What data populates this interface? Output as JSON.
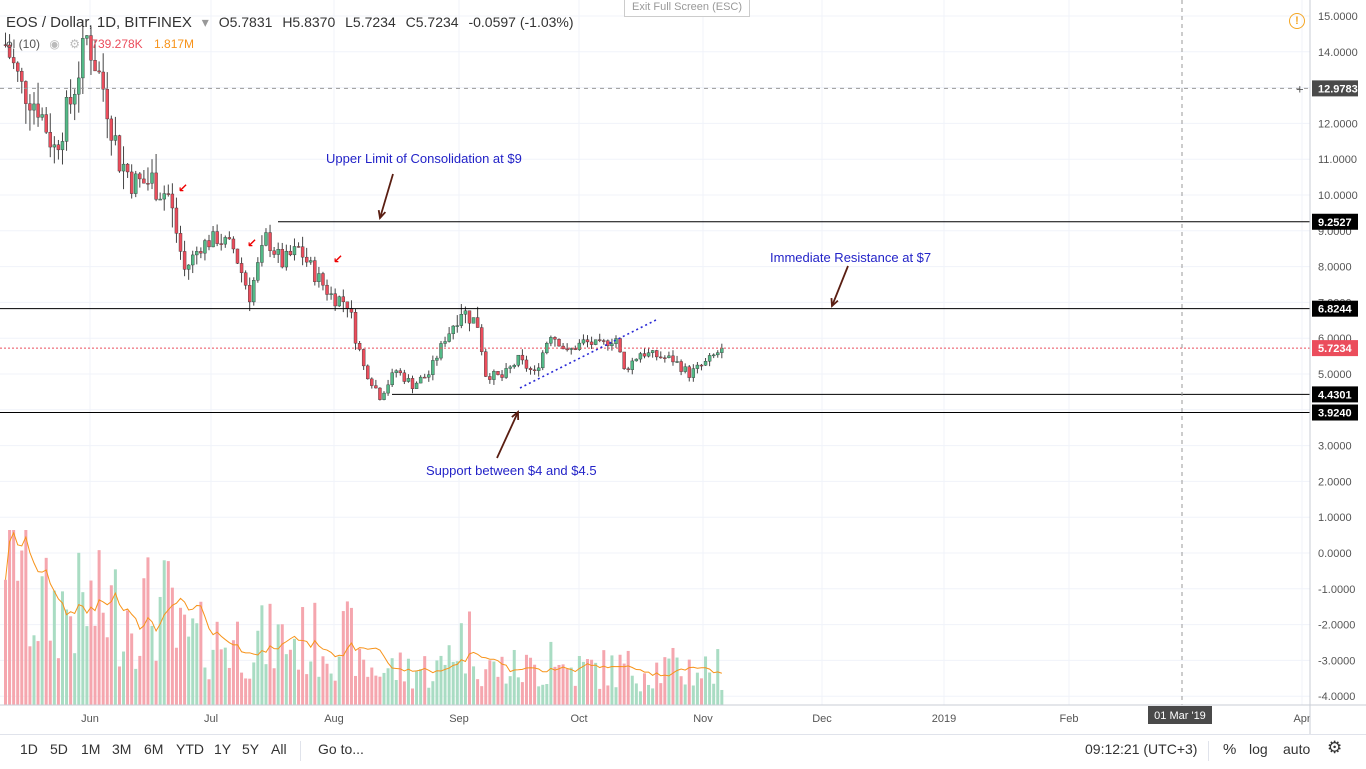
{
  "header": {
    "symbol": "EOS / Dollar, 1D, BITFINEX",
    "open": "O5.7831",
    "high": "H5.8370",
    "low": "L5.7234",
    "close": "C5.7234",
    "change": "-0.0597 (-1.03%)",
    "volume_label": "ol (10)",
    "volume_value_1": "739.278K",
    "volume_value_2": "1.817M",
    "exit_fullscreen": "Exit Full Screen (ESC)"
  },
  "annotations": {
    "upper_limit": "Upper Limit of Consolidation at $9",
    "resistance": "Immediate Resistance at $7",
    "support": "Support between $4 and $4.5"
  },
  "price_axis": {
    "ticks": [
      "15.0000",
      "14.0000",
      "13.0000",
      "12.0000",
      "11.0000",
      "10.0000",
      "9.0000",
      "8.0000",
      "7.0000",
      "6.0000",
      "5.0000",
      "4.0000",
      "3.0000",
      "2.0000",
      "1.0000",
      "0.0000",
      "-1.0000",
      "-2.0000",
      "-3.0000",
      "-4.0000"
    ],
    "labels": {
      "crosshair": "12.9783",
      "level_9": "9.2527",
      "level_68": "6.8244",
      "last": "5.7234",
      "level_44": "4.4301",
      "level_39": "3.9240"
    }
  },
  "time_axis": {
    "ticks": [
      "Jun",
      "Jul",
      "Aug",
      "Sep",
      "Oct",
      "Nov",
      "Dec",
      "2019",
      "Feb",
      "Apr"
    ],
    "crosshair": "01 Mar '19"
  },
  "bottom_bar": {
    "ranges": [
      "1D",
      "5D",
      "1M",
      "3M",
      "6M",
      "YTD",
      "1Y",
      "5Y",
      "All"
    ],
    "goto": "Go to...",
    "clock": "09:12:21 (UTC+3)",
    "percent": "%",
    "log": "log",
    "auto": "auto"
  },
  "colors": {
    "up": "#53b987",
    "down": "#eb4d5c",
    "vol_up": "#a9dcc3",
    "vol_down": "#f5a6ae",
    "annotation": "#2323c8",
    "arrow": "#5a1e12",
    "ma": "#f7931a"
  },
  "chart_data": {
    "type": "candlestick",
    "title": "EOS / Dollar, 1D, BITFINEX",
    "ylim": [
      -4.3,
      15.2
    ],
    "horizontal_levels": [
      9.2527,
      6.8244,
      4.4301,
      3.924
    ],
    "last_price": 5.7234,
    "crosshair_price": 12.9783,
    "x_tick_labels": [
      "Jun",
      "Jul",
      "Aug",
      "Sep",
      "Oct",
      "Nov",
      "Dec",
      "2019",
      "Feb",
      "Apr"
    ],
    "trend": [
      [
        0,
        14.2
      ],
      [
        4,
        13.0
      ],
      [
        8,
        12.5
      ],
      [
        12,
        11.3
      ],
      [
        16,
        12.6
      ],
      [
        20,
        14.4
      ],
      [
        24,
        13.0
      ],
      [
        28,
        11.0
      ],
      [
        32,
        10.3
      ],
      [
        36,
        10.4
      ],
      [
        40,
        10.0
      ],
      [
        44,
        7.9
      ],
      [
        48,
        8.6
      ],
      [
        52,
        8.8
      ],
      [
        56,
        8.5
      ],
      [
        60,
        7.2
      ],
      [
        64,
        8.8
      ],
      [
        68,
        8.1
      ],
      [
        72,
        8.5
      ],
      [
        76,
        7.8
      ],
      [
        80,
        7.2
      ],
      [
        84,
        7.0
      ],
      [
        88,
        5.2
      ],
      [
        92,
        4.4
      ],
      [
        96,
        5.1
      ],
      [
        100,
        4.7
      ],
      [
        104,
        5.0
      ],
      [
        108,
        6.0
      ],
      [
        112,
        6.8
      ],
      [
        116,
        6.4
      ],
      [
        118,
        5.0
      ],
      [
        122,
        4.9
      ],
      [
        126,
        5.4
      ],
      [
        130,
        5.0
      ],
      [
        134,
        6.2
      ],
      [
        138,
        5.6
      ],
      [
        142,
        5.9
      ],
      [
        146,
        5.8
      ],
      [
        150,
        6.0
      ],
      [
        152,
        5.1
      ],
      [
        156,
        5.6
      ],
      [
        160,
        5.5
      ],
      [
        164,
        5.4
      ],
      [
        168,
        5.0
      ],
      [
        172,
        5.3
      ],
      [
        176,
        5.7
      ]
    ]
  }
}
